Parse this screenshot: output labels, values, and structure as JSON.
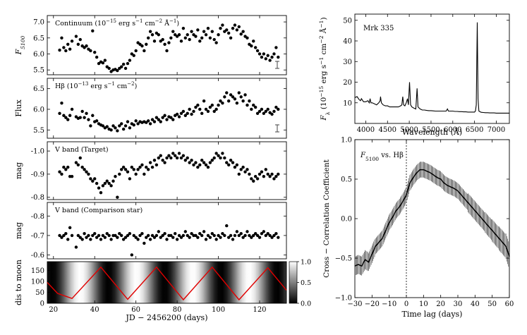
{
  "chart_data": [
    {
      "type": "scatter",
      "annotation": "Continuum (10^{-15} erg s^{-1} cm^{-2} Å^{-1})",
      "ylabel": "F5100",
      "ylim": [
        5.35,
        7.2
      ],
      "yticks": [
        "7.0",
        "6.5",
        "6.0",
        "5.5"
      ],
      "error_bar": "I",
      "x": [
        23,
        24,
        25,
        26,
        27,
        28,
        29,
        31,
        32,
        33,
        34,
        35,
        36,
        37,
        38,
        39,
        40,
        41,
        42,
        43,
        44,
        45,
        46,
        47,
        48,
        49,
        50,
        51,
        52,
        53,
        54,
        55,
        56,
        57,
        58,
        59,
        60,
        61,
        62,
        63,
        64,
        65,
        66,
        67,
        68,
        69,
        70,
        71,
        72,
        73,
        74,
        75,
        76,
        77,
        78,
        79,
        80,
        81,
        82,
        83,
        84,
        85,
        86,
        87,
        88,
        89,
        90,
        91,
        92,
        93,
        94,
        95,
        96,
        97,
        98,
        99,
        100,
        101,
        102,
        103,
        104,
        105,
        106,
        107,
        108,
        109,
        110,
        111,
        112,
        113,
        114,
        115,
        116,
        117,
        118,
        119,
        120,
        121,
        122,
        123,
        124,
        125,
        126,
        127,
        128,
        129
      ],
      "values": [
        6.12,
        6.5,
        6.2,
        6.1,
        6.3,
        6.15,
        6.4,
        6.55,
        6.3,
        6.45,
        6.25,
        6.2,
        6.25,
        6.15,
        6.1,
        6.72,
        6.05,
        5.9,
        5.7,
        5.75,
        5.72,
        5.8,
        5.6,
        5.55,
        5.45,
        5.5,
        5.52,
        5.48,
        5.55,
        5.6,
        5.68,
        5.55,
        5.7,
        5.8,
        6.0,
        5.95,
        6.1,
        6.35,
        6.3,
        6.25,
        6.1,
        6.3,
        6.5,
        6.7,
        6.6,
        6.4,
        6.65,
        6.6,
        6.4,
        6.45,
        6.3,
        6.1,
        6.35,
        6.5,
        6.7,
        6.6,
        6.55,
        6.6,
        6.4,
        6.8,
        6.5,
        6.6,
        6.45,
        6.7,
        6.6,
        6.55,
        6.75,
        6.4,
        6.5,
        6.7,
        6.6,
        6.8,
        6.5,
        6.7,
        6.45,
        6.35,
        6.6,
        6.8,
        6.9,
        6.7,
        6.75,
        6.65,
        6.5,
        6.8,
        6.9,
        6.75,
        6.85,
        6.62,
        6.7,
        6.55,
        6.5,
        6.3,
        6.25,
        6.4,
        6.2,
        6.1,
        6.0,
        5.9,
        6.0,
        5.85,
        5.95,
        5.8,
        5.9,
        6.0,
        6.2,
        5.9
      ]
    },
    {
      "type": "scatter",
      "annotation": "Hβ (10^{-13} erg s^{-1} cm^{-2})",
      "ylabel": "Flux",
      "ylim": [
        5.3,
        6.75
      ],
      "yticks": [
        "6.5",
        "6.0",
        "5.5"
      ],
      "error_bar": "I",
      "x": [
        23,
        24,
        25,
        26,
        27,
        28,
        29,
        31,
        32,
        33,
        34,
        35,
        36,
        37,
        38,
        39,
        40,
        41,
        42,
        43,
        44,
        45,
        46,
        47,
        48,
        49,
        50,
        51,
        52,
        53,
        54,
        55,
        56,
        57,
        58,
        59,
        60,
        61,
        62,
        63,
        64,
        65,
        66,
        67,
        68,
        69,
        70,
        71,
        72,
        73,
        74,
        75,
        76,
        77,
        78,
        79,
        80,
        81,
        82,
        83,
        84,
        85,
        86,
        87,
        88,
        89,
        90,
        91,
        92,
        93,
        94,
        95,
        96,
        97,
        98,
        99,
        100,
        101,
        102,
        103,
        104,
        105,
        106,
        107,
        108,
        109,
        110,
        111,
        112,
        113,
        114,
        115,
        116,
        117,
        118,
        119,
        120,
        121,
        122,
        123,
        124,
        125,
        126,
        127,
        128,
        129
      ],
      "values": [
        5.9,
        6.15,
        5.85,
        5.8,
        5.75,
        5.85,
        6.0,
        5.82,
        5.78,
        5.8,
        5.95,
        5.8,
        5.9,
        5.75,
        5.6,
        5.85,
        5.7,
        5.72,
        5.65,
        5.62,
        5.6,
        5.55,
        5.58,
        5.52,
        5.5,
        5.6,
        5.55,
        5.48,
        5.6,
        5.65,
        5.52,
        5.6,
        5.7,
        5.55,
        5.65,
        5.62,
        5.72,
        5.65,
        5.7,
        5.68,
        5.7,
        5.68,
        5.72,
        5.65,
        5.75,
        5.7,
        5.8,
        5.75,
        5.7,
        5.8,
        5.85,
        5.75,
        5.82,
        5.8,
        5.75,
        5.85,
        5.88,
        5.82,
        5.9,
        5.95,
        5.85,
        5.9,
        6.0,
        5.88,
        5.95,
        6.05,
        6.1,
        6.0,
        5.9,
        6.2,
        6.0,
        5.95,
        6.05,
        6.1,
        5.95,
        6.0,
        6.1,
        6.2,
        6.15,
        6.3,
        6.4,
        6.2,
        6.35,
        6.3,
        6.25,
        6.15,
        6.4,
        6.3,
        6.2,
        6.35,
        6.1,
        6.2,
        6.0,
        6.1,
        6.05,
        5.9,
        5.95,
        6.0,
        5.9,
        5.95,
        6.0,
        5.92,
        5.88,
        5.95,
        6.05,
        6.0
      ]
    },
    {
      "type": "scatter",
      "annotation": "V band (Target)",
      "ylabel": "mag",
      "ylim": [
        -1.04,
        -0.79
      ],
      "yticks": [
        "-1.0",
        "-0.9",
        "-0.8"
      ],
      "x": [
        23,
        24,
        25,
        26,
        27,
        28,
        29,
        31,
        32,
        33,
        34,
        35,
        36,
        37,
        38,
        39,
        40,
        41,
        42,
        43,
        44,
        45,
        46,
        47,
        48,
        49,
        50,
        51,
        52,
        53,
        54,
        55,
        56,
        57,
        58,
        59,
        60,
        61,
        62,
        63,
        64,
        65,
        66,
        67,
        68,
        69,
        70,
        71,
        72,
        73,
        74,
        75,
        76,
        77,
        78,
        79,
        80,
        81,
        82,
        83,
        84,
        85,
        86,
        87,
        88,
        89,
        90,
        91,
        92,
        93,
        94,
        95,
        96,
        97,
        98,
        99,
        100,
        101,
        102,
        103,
        104,
        105,
        106,
        107,
        108,
        109,
        110,
        111,
        112,
        113,
        114,
        115,
        116,
        117,
        118,
        119,
        120,
        121,
        122,
        123,
        124,
        125,
        126,
        127,
        128,
        129
      ],
      "values": [
        -0.91,
        -0.9,
        -0.93,
        -0.92,
        -0.93,
        -0.89,
        -0.89,
        -0.95,
        -0.94,
        -0.97,
        -0.93,
        -0.92,
        -0.91,
        -0.9,
        -0.88,
        -0.87,
        -0.88,
        -0.86,
        -0.84,
        -0.82,
        -0.85,
        -0.86,
        -0.87,
        -0.86,
        -0.85,
        -0.87,
        -0.89,
        -0.8,
        -0.9,
        -0.92,
        -0.93,
        -0.92,
        -0.91,
        -0.88,
        -0.93,
        -0.92,
        -0.9,
        -0.92,
        -0.93,
        -0.94,
        -0.9,
        -0.93,
        -0.92,
        -0.95,
        -0.93,
        -0.96,
        -0.94,
        -0.97,
        -0.98,
        -0.96,
        -0.95,
        -0.97,
        -0.98,
        -0.97,
        -0.99,
        -0.98,
        -0.97,
        -0.99,
        -0.97,
        -0.98,
        -0.96,
        -0.97,
        -0.95,
        -0.96,
        -0.94,
        -0.95,
        -0.93,
        -0.94,
        -0.96,
        -0.95,
        -0.94,
        -0.93,
        -0.95,
        -0.96,
        -0.97,
        -0.99,
        -0.98,
        -0.97,
        -0.99,
        -0.97,
        -0.95,
        -0.94,
        -0.96,
        -0.95,
        -0.93,
        -0.94,
        -0.9,
        -0.92,
        -0.93,
        -0.91,
        -0.92,
        -0.9,
        -0.88,
        -0.87,
        -0.89,
        -0.88,
        -0.9,
        -0.91,
        -0.89,
        -0.92,
        -0.9,
        -0.89,
        -0.9,
        -0.88,
        -0.89,
        -0.9
      ]
    },
    {
      "type": "scatter",
      "annotation": "V band (Comparison star)",
      "ylabel": "mag",
      "ylim": [
        -0.87,
        -0.58
      ],
      "yticks": [
        "-0.8",
        "-0.7",
        "-0.6"
      ],
      "x": [
        23,
        24,
        25,
        26,
        27,
        28,
        29,
        31,
        32,
        33,
        34,
        35,
        36,
        37,
        38,
        39,
        40,
        41,
        42,
        43,
        44,
        45,
        46,
        47,
        48,
        49,
        50,
        51,
        52,
        53,
        54,
        55,
        56,
        57,
        58,
        59,
        60,
        61,
        62,
        63,
        64,
        65,
        66,
        67,
        68,
        69,
        70,
        71,
        72,
        73,
        74,
        75,
        76,
        77,
        78,
        79,
        80,
        81,
        82,
        83,
        84,
        85,
        86,
        87,
        88,
        89,
        90,
        91,
        92,
        93,
        94,
        95,
        96,
        97,
        98,
        99,
        100,
        101,
        102,
        103,
        104,
        105,
        106,
        107,
        108,
        109,
        110,
        111,
        112,
        113,
        114,
        115,
        116,
        117,
        118,
        119,
        120,
        121,
        122,
        123,
        124,
        125,
        126,
        127,
        128,
        129
      ],
      "values": [
        -0.7,
        -0.69,
        -0.7,
        -0.71,
        -0.68,
        -0.74,
        -0.7,
        -0.64,
        -0.7,
        -0.69,
        -0.68,
        -0.71,
        -0.69,
        -0.7,
        -0.68,
        -0.7,
        -0.71,
        -0.69,
        -0.7,
        -0.68,
        -0.7,
        -0.69,
        -0.71,
        -0.7,
        -0.68,
        -0.7,
        -0.7,
        -0.69,
        -0.71,
        -0.7,
        -0.68,
        -0.69,
        -0.7,
        -0.71,
        -0.6,
        -0.7,
        -0.69,
        -0.68,
        -0.7,
        -0.71,
        -0.66,
        -0.69,
        -0.7,
        -0.68,
        -0.7,
        -0.69,
        -0.7,
        -0.72,
        -0.69,
        -0.7,
        -0.71,
        -0.68,
        -0.7,
        -0.7,
        -0.69,
        -0.71,
        -0.68,
        -0.7,
        -0.69,
        -0.7,
        -0.72,
        -0.7,
        -0.69,
        -0.71,
        -0.7,
        -0.7,
        -0.69,
        -0.71,
        -0.7,
        -0.72,
        -0.68,
        -0.7,
        -0.69,
        -0.71,
        -0.7,
        -0.68,
        -0.7,
        -0.69,
        -0.71,
        -0.7,
        -0.75,
        -0.69,
        -0.7,
        -0.68,
        -0.7,
        -0.72,
        -0.7,
        -0.71,
        -0.69,
        -0.7,
        -0.72,
        -0.7,
        -0.69,
        -0.7,
        -0.71,
        -0.7,
        -0.69,
        -0.71,
        -0.72,
        -0.7,
        -0.71,
        -0.7,
        -0.69,
        -0.7,
        -0.71,
        -0.69
      ]
    },
    {
      "type": "heatmap",
      "ylabel": "dis to moon",
      "xlabel": "JD − 2456200 (days)",
      "xlim": [
        17,
        133
      ],
      "ylim": [
        0,
        190
      ],
      "xticks": [
        "20",
        "40",
        "60",
        "80",
        "100",
        "120"
      ],
      "yticks": [
        "150",
        "100",
        "50",
        "0"
      ],
      "colorbar_ticks": [
        "1.0",
        "0.5",
        "0.0"
      ],
      "moon_distance_x": [
        17,
        22,
        29,
        43,
        56,
        70,
        83,
        97,
        110,
        124,
        133
      ],
      "moon_distance_y": [
        95,
        45,
        22,
        165,
        18,
        165,
        16,
        165,
        16,
        162,
        60
      ]
    },
    {
      "type": "line",
      "title": "Mrk 335",
      "ylabel": "Fλ (10^{-15} erg s^{-1} cm^{-2} Å^{-1})",
      "xlabel": "Wavelength (Å)",
      "xlim": [
        3750,
        7300
      ],
      "ylim": [
        0,
        53
      ],
      "xticks": [
        "4000",
        "4500",
        "5000",
        "5500",
        "6000",
        "6500",
        "7000"
      ],
      "yticks": [
        "50",
        "40",
        "30",
        "20",
        "10"
      ],
      "wavelength": [
        3750,
        3800,
        3850,
        3880,
        3900,
        3950,
        4000,
        4050,
        4080,
        4100,
        4120,
        4150,
        4200,
        4250,
        4300,
        4330,
        4340,
        4360,
        4400,
        4450,
        4500,
        4550,
        4600,
        4650,
        4700,
        4750,
        4800,
        4830,
        4850,
        4870,
        4900,
        4930,
        4959,
        4980,
        5007,
        5030,
        5060,
        5100,
        5150,
        5180,
        5200,
        5250,
        5300,
        5350,
        5400,
        5450,
        5500,
        5550,
        5600,
        5650,
        5700,
        5750,
        5800,
        5850,
        5876,
        5900,
        5950,
        6000,
        6050,
        6100,
        6150,
        6200,
        6250,
        6300,
        6350,
        6400,
        6450,
        6500,
        6520,
        6540,
        6563,
        6580,
        6600,
        6650,
        6700,
        6750,
        6800,
        6850,
        6900,
        6950,
        7000,
        7050,
        7100,
        7150,
        7200,
        7250,
        7300
      ],
      "flux": [
        12.5,
        13,
        11.5,
        11,
        12,
        10.5,
        10.5,
        11,
        10,
        12,
        10,
        10,
        9.5,
        9,
        10,
        11,
        13,
        10,
        9,
        8.5,
        8.5,
        8,
        8,
        8,
        8,
        8,
        8.5,
        9,
        13,
        9,
        8.5,
        10,
        12,
        9,
        20,
        9,
        8,
        7.5,
        7,
        17,
        8,
        7,
        6.5,
        6.5,
        6.3,
        6.2,
        6.2,
        6.1,
        6,
        6,
        6,
        6,
        6,
        6,
        7,
        6,
        6,
        6,
        5.8,
        5.8,
        5.7,
        5.7,
        5.6,
        5.6,
        5.5,
        5.5,
        5.5,
        5.5,
        6,
        9,
        49,
        12,
        6,
        5.4,
        5.3,
        5.2,
        5.2,
        5.1,
        5.1,
        5.1,
        5,
        5,
        5,
        5,
        5,
        5,
        5
      ]
    },
    {
      "type": "line",
      "annotation": "F5100 vs. Hβ",
      "ylabel": "Cross − Correlation Coefficient",
      "xlabel": "Time lag (days)",
      "xlim": [
        -30,
        60
      ],
      "ylim": [
        -1.0,
        1.0
      ],
      "xticks": [
        "−30",
        "−20",
        "−10",
        "0",
        "10",
        "20",
        "30",
        "40",
        "50",
        "60"
      ],
      "yticks": [
        "1.0",
        "0.5",
        "0.0",
        "−0.5",
        "−1.0"
      ],
      "vline_at": 0,
      "lag": [
        -30,
        -28,
        -26,
        -24,
        -22,
        -20,
        -18,
        -16,
        -14,
        -12,
        -10,
        -8,
        -6,
        -4,
        -2,
        0,
        2,
        4,
        6,
        8,
        10,
        12,
        14,
        16,
        18,
        20,
        22,
        24,
        26,
        28,
        30,
        32,
        34,
        36,
        38,
        40,
        42,
        44,
        46,
        48,
        50,
        52,
        54,
        56,
        58,
        60
      ],
      "ccf": [
        -0.6,
        -0.58,
        -0.6,
        -0.52,
        -0.55,
        -0.45,
        -0.35,
        -0.3,
        -0.25,
        -0.15,
        -0.05,
        0.02,
        0.1,
        0.15,
        0.22,
        0.3,
        0.45,
        0.52,
        0.58,
        0.62,
        0.62,
        0.6,
        0.58,
        0.55,
        0.52,
        0.5,
        0.45,
        0.42,
        0.4,
        0.38,
        0.35,
        0.3,
        0.25,
        0.2,
        0.15,
        0.1,
        0.05,
        0.0,
        -0.05,
        -0.1,
        -0.15,
        -0.2,
        -0.25,
        -0.3,
        -0.35,
        -0.48
      ],
      "ccf_err": [
        0.12,
        0.12,
        0.12,
        0.12,
        0.11,
        0.11,
        0.1,
        0.1,
        0.1,
        0.1,
        0.1,
        0.1,
        0.1,
        0.1,
        0.1,
        0.1,
        0.1,
        0.1,
        0.1,
        0.1,
        0.1,
        0.1,
        0.1,
        0.1,
        0.1,
        0.1,
        0.1,
        0.1,
        0.1,
        0.1,
        0.1,
        0.1,
        0.1,
        0.12,
        0.12,
        0.12,
        0.12,
        0.12,
        0.13,
        0.13,
        0.14,
        0.14,
        0.15,
        0.15,
        0.16,
        0.16
      ]
    }
  ]
}
